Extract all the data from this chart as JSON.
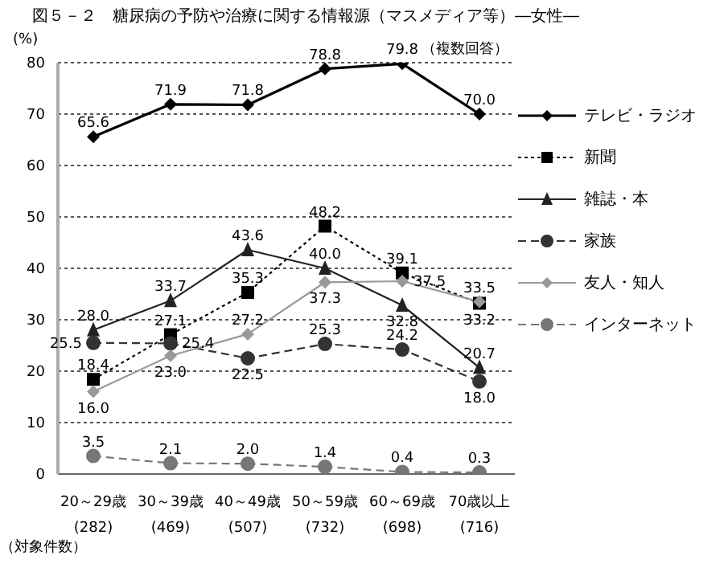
{
  "chart_data": {
    "type": "line",
    "title": "図５－２　糖尿病の予防や治療に関する情報源（マスメディア等）―女性―",
    "ylabel": "(%)",
    "annotations": [
      "（複数回答）",
      "（対象件数）"
    ],
    "categories": [
      "20～29歳\n(282)",
      "30～39歳\n(469)",
      "40～49歳\n(507)",
      "50～59歳\n(732)",
      "60～69歳\n(698)",
      "70歳以上\n(716)"
    ],
    "series": [
      {
        "name": "テレビ・ラジオ",
        "color": "#000000",
        "marker": "diamond",
        "line_style": "solid",
        "values": [
          65.6,
          71.9,
          71.8,
          78.8,
          79.8,
          70.0
        ],
        "value_labels": [
          "65.6",
          "71.9",
          "71.8",
          "78.8",
          "79.8",
          "70.0"
        ]
      },
      {
        "name": "新聞",
        "color": "#000000",
        "marker": "square",
        "line_style": "dotted",
        "values": [
          18.4,
          27.1,
          35.3,
          48.2,
          39.1,
          33.2
        ],
        "value_labels": [
          "18.4",
          "27.1",
          "35.3",
          "48.2",
          "39.1",
          "33.2"
        ]
      },
      {
        "name": "雑誌・本",
        "color": "#222222",
        "marker": "triangle",
        "line_style": "solid",
        "values": [
          28.0,
          33.7,
          43.6,
          40.0,
          32.8,
          20.7
        ],
        "value_labels": [
          "28.0",
          "33.7",
          "43.6",
          "40.0",
          "32.8",
          "20.7"
        ]
      },
      {
        "name": "家族",
        "color": "#333333",
        "marker": "circle",
        "line_style": "dashed",
        "values": [
          25.5,
          25.4,
          22.5,
          25.3,
          24.2,
          18.0
        ],
        "value_labels": [
          "25.5",
          "25.4",
          "22.5",
          "25.3",
          "24.2",
          "18.0"
        ]
      },
      {
        "name": "友人・知人",
        "color": "#999999",
        "marker": "diamond",
        "line_style": "solid",
        "values": [
          16.0,
          23.0,
          27.2,
          37.3,
          37.5,
          33.5
        ],
        "value_labels": [
          "16.0",
          "23.0",
          "27.2",
          "37.3",
          "37.5",
          "33.5"
        ]
      },
      {
        "name": "インターネット",
        "color": "#777777",
        "marker": "circle",
        "line_style": "dashed",
        "values": [
          3.5,
          2.1,
          2.0,
          1.4,
          0.4,
          0.3
        ],
        "value_labels": [
          "3.5",
          "2.1",
          "2.0",
          "1.4",
          "0.4",
          "0.3"
        ]
      }
    ],
    "ylim": [
      0,
      80
    ],
    "yticks": [
      0,
      10,
      20,
      30,
      40,
      50,
      60,
      70,
      80
    ],
    "grid": "y",
    "legend": "right"
  }
}
